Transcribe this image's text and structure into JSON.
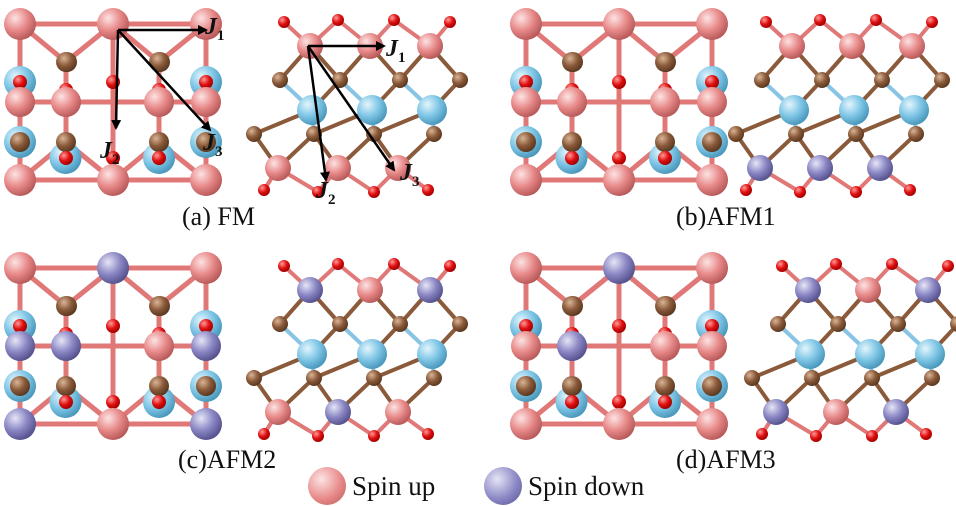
{
  "colors": {
    "spin_up": "#e88a8a",
    "spin_down": "#8a87c4",
    "carbon": "#8a5a3a",
    "oxygen": "#e01010",
    "metal_light_blue": "#7fc6e6",
    "bond_pink": "#e07878",
    "bond_blue": "#88c4e4",
    "arrow": "#000000"
  },
  "panels": [
    {
      "id": "a",
      "caption": "(a) FM",
      "top_pattern": [
        "up",
        "up",
        "up"
      ],
      "mid_pattern": [
        "up",
        "up"
      ],
      "bot_pattern": [
        "up",
        "up",
        "up"
      ],
      "side_top": [
        "up",
        "up",
        "up"
      ],
      "side_bot": [
        "up",
        "up",
        "up"
      ]
    },
    {
      "id": "b",
      "caption": "(b)AFM1",
      "top_pattern": [
        "up",
        "up",
        "up"
      ],
      "mid_pattern": [
        "up",
        "up"
      ],
      "bot_pattern": [
        "up",
        "up",
        "up"
      ],
      "side_top": [
        "up",
        "up",
        "up"
      ],
      "side_bot": [
        "down",
        "down",
        "down"
      ]
    },
    {
      "id": "c",
      "caption": "(c)AFM2",
      "top_pattern": [
        "up",
        "down",
        "up"
      ],
      "mid_pattern": [
        "down",
        "up"
      ],
      "bot_pattern": [
        "down",
        "up",
        "down"
      ],
      "side_top": [
        "down",
        "up",
        "down"
      ],
      "side_bot": [
        "up",
        "down",
        "up"
      ]
    },
    {
      "id": "d",
      "caption": "(d)AFM3",
      "top_pattern": [
        "up",
        "down",
        "up"
      ],
      "mid_pattern": [
        "down",
        "up"
      ],
      "bot_pattern": [
        "up",
        "up",
        "up"
      ],
      "side_top": [
        "down",
        "up",
        "down"
      ],
      "side_bot": [
        "down",
        "up",
        "down"
      ]
    }
  ],
  "exchange_labels": {
    "j1": {
      "main": "J",
      "sub": "1"
    },
    "j2": {
      "main": "J",
      "sub": "2"
    },
    "j3": {
      "main": "J",
      "sub": "3"
    }
  },
  "legend": {
    "spin_up": "Spin up",
    "spin_down": "Spin down"
  }
}
